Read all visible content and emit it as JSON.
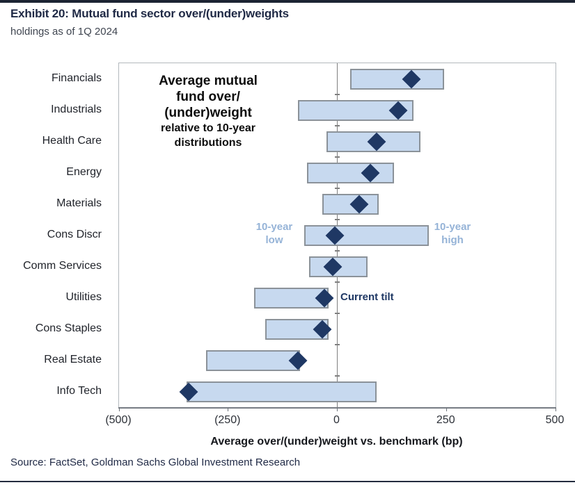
{
  "header": {
    "title": "Exhibit 20: Mutual fund sector over/(under)weights",
    "subtitle": "holdings as of 1Q 2024"
  },
  "source_line": "Source: FactSet, Goldman Sachs Global Investment Research",
  "chart_data": {
    "type": "bar",
    "subtype": "horizontal-range-bar-with-point-marker",
    "categories": [
      "Financials",
      "Industrials",
      "Health Care",
      "Energy",
      "Materials",
      "Cons Discr",
      "Comm Services",
      "Utilities",
      "Cons Staples",
      "Real Estate",
      "Info Tech"
    ],
    "series": [
      {
        "name": "10-year low",
        "values": [
          30,
          -90,
          -25,
          -70,
          -35,
          -75,
          -65,
          -190,
          -165,
          -300,
          -345
        ]
      },
      {
        "name": "10-year high",
        "values": [
          245,
          175,
          190,
          130,
          95,
          210,
          70,
          -20,
          -20,
          -85,
          90
        ]
      },
      {
        "name": "Current tilt",
        "values": [
          170,
          140,
          90,
          75,
          50,
          -5,
          -10,
          -30,
          -35,
          -90,
          -340
        ]
      }
    ],
    "xlabel": "Average over/(under)weight vs. benchmark (bp)",
    "xlim": [
      -500,
      500
    ],
    "x_tick_values": [
      -500,
      -250,
      0,
      250,
      500
    ],
    "x_tick_labels": [
      "(500)",
      "(250)",
      "0",
      "250",
      "500"
    ],
    "grid": "zero-line-only",
    "legend_position": "in-plot-annotations",
    "annotation_lines_large": [
      "Average mutual",
      "fund over/",
      "(under)weight"
    ],
    "annotation_lines_small": [
      "relative to 10-year",
      "distributions"
    ],
    "labels": {
      "low": "10-year\nlow",
      "high": "10-year\nhigh",
      "current": "Current tilt"
    },
    "colors": {
      "bar_fill": "#c7d9ef",
      "bar_border": "#8b9299",
      "diamond": "#1f3864",
      "light_label": "#95b3d7",
      "dark_label": "#1f3864"
    }
  }
}
